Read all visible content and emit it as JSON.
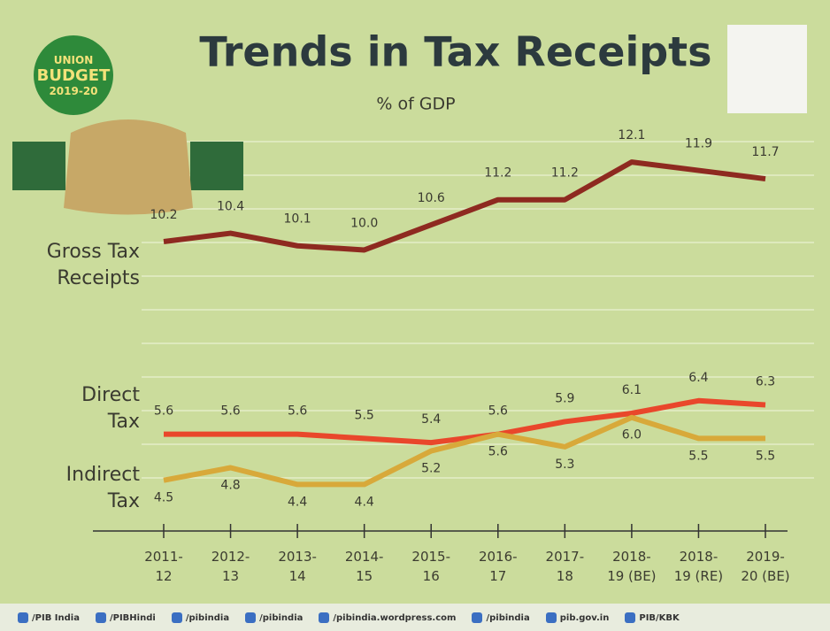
{
  "chart_data": {
    "type": "line",
    "title": "Trends in Tax Receipts",
    "subtitle": "% of GDP",
    "categories": [
      "2011-\n12",
      "2012-\n13",
      "2013-\n14",
      "2014-\n15",
      "2015-\n16",
      "2016-\n17",
      "2017-\n18",
      "2018-\n19 (BE)",
      "2018-\n19 (RE)",
      "2019-\n20 (BE)"
    ],
    "series": [
      {
        "name": "Gross Tax\nReceipts",
        "color": "#8e2a20",
        "values": [
          10.2,
          10.4,
          10.1,
          10.0,
          10.6,
          11.2,
          11.2,
          12.1,
          11.9,
          11.7
        ],
        "value_labels": [
          "10.2",
          "10.4",
          "10.1",
          "10.0",
          "10.6",
          "11.2",
          "11.2",
          "12.1",
          "11.9",
          "11.7"
        ]
      },
      {
        "name": "Direct\nTax",
        "color": "#e9472b",
        "values": [
          5.6,
          5.6,
          5.6,
          5.5,
          5.4,
          5.6,
          5.9,
          6.1,
          6.4,
          6.3
        ],
        "value_labels": [
          "5.6",
          "5.6",
          "5.6",
          "5.5",
          "5.4",
          "5.6",
          "5.9",
          "6.1",
          "6.4",
          "6.3"
        ]
      },
      {
        "name": "Indirect\nTax",
        "color": "#d8a93a",
        "values": [
          4.5,
          4.8,
          4.4,
          4.4,
          5.2,
          5.6,
          5.3,
          6.0,
          5.5,
          5.5
        ],
        "value_labels": [
          "4.5",
          "4.8",
          "4.4",
          "4.4",
          "5.2",
          "5.6",
          "5.3",
          "6.0",
          "5.5",
          "5.5"
        ]
      }
    ],
    "ylim": [
      3.5,
      12.8
    ]
  },
  "badge": [
    "UNION",
    "BUDGET",
    "2019-20"
  ],
  "footer": [
    "/PIB India",
    "/PIBHindi",
    "/pibindia",
    "/pibindia",
    "/pibindia.wordpress.com",
    "/pibindia",
    "pib.gov.in",
    "PIB/KBK"
  ]
}
